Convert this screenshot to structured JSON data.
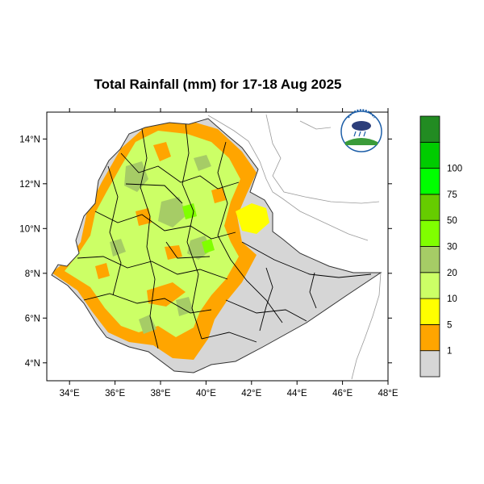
{
  "title": "Total Rainfall (mm) for 17-18 Aug 2025",
  "map": {
    "lon_range": [
      33,
      48
    ],
    "lat_range": [
      3.2,
      15.2
    ],
    "x_ticks": [
      {
        "value": 34,
        "label": "34°E"
      },
      {
        "value": 36,
        "label": "36°E"
      },
      {
        "value": 38,
        "label": "38°E"
      },
      {
        "value": 40,
        "label": "40°E"
      },
      {
        "value": 42,
        "label": "42°E"
      },
      {
        "value": 44,
        "label": "44°E"
      },
      {
        "value": 46,
        "label": "46°E"
      },
      {
        "value": 48,
        "label": "48°E"
      }
    ],
    "y_ticks": [
      {
        "value": 4,
        "label": "4°N"
      },
      {
        "value": 6,
        "label": "6°N"
      },
      {
        "value": 8,
        "label": "8°N"
      },
      {
        "value": 10,
        "label": "10°N"
      },
      {
        "value": 12,
        "label": "12°N"
      },
      {
        "value": 14,
        "label": "14°N"
      }
    ]
  },
  "legend": {
    "classes": [
      {
        "color": "#d6d6d6"
      },
      {
        "color": "#ffa500"
      },
      {
        "color": "#ffff00"
      },
      {
        "color": "#ccff66"
      },
      {
        "color": "#a6cc66"
      },
      {
        "color": "#80ff00"
      },
      {
        "color": "#66cc00"
      },
      {
        "color": "#00ff00"
      },
      {
        "color": "#00cc00"
      },
      {
        "color": "#228b22"
      }
    ],
    "labels": [
      "1",
      "5",
      "10",
      "20",
      "30",
      "50",
      "75",
      "100"
    ]
  }
}
